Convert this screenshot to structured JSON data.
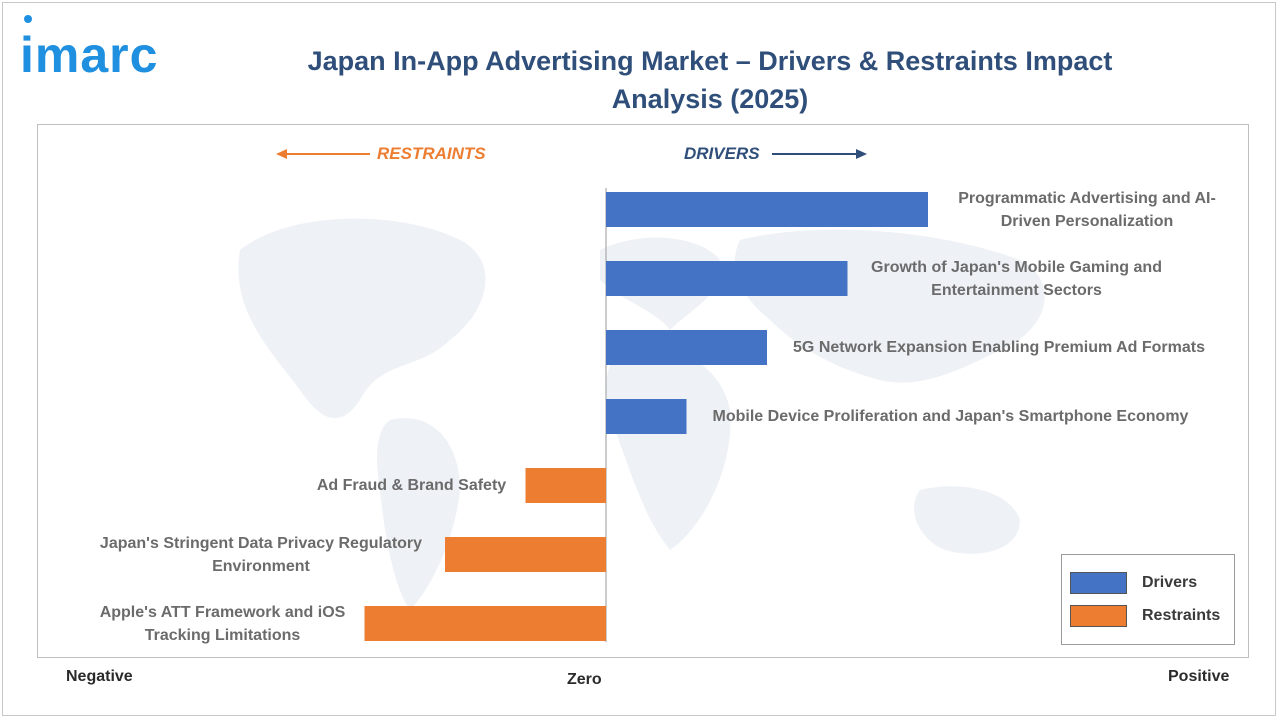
{
  "brand": {
    "logo_text": "imarc"
  },
  "chart_data": {
    "type": "bar",
    "orientation": "horizontal",
    "title": "Japan In-App Advertising Market – Drivers & Restraints Impact Analysis (2025)",
    "direction_labels": {
      "negative": "RESTRAINTS",
      "positive": "DRIVERS"
    },
    "axis_words": {
      "negative": "Negative",
      "zero": "Zero",
      "positive": "Positive"
    },
    "xlim": [
      -3,
      4
    ],
    "categories": [
      "Programmatic Advertising and AI-Driven Personalization",
      "Growth of Japan's Mobile Gaming and Entertainment Sectors",
      "5G Network Expansion Enabling Premium Ad Formats",
      "Mobile Device Proliferation and Japan's Smartphone Economy",
      "Ad Fraud & Brand Safety",
      "Japan's Stringent Data Privacy Regulatory Environment",
      "Apple's ATT Framework and iOS Tracking Limitations"
    ],
    "series": [
      {
        "name": "Drivers",
        "values": [
          4,
          3,
          2,
          1,
          0,
          0,
          0
        ]
      },
      {
        "name": "Restraints",
        "values": [
          0,
          0,
          0,
          0,
          -1,
          -2,
          -3
        ]
      }
    ],
    "colors": {
      "Drivers": "#4472c4",
      "Restraints": "#ed7d31"
    },
    "legend_position": "bottom-right",
    "grid": false
  }
}
